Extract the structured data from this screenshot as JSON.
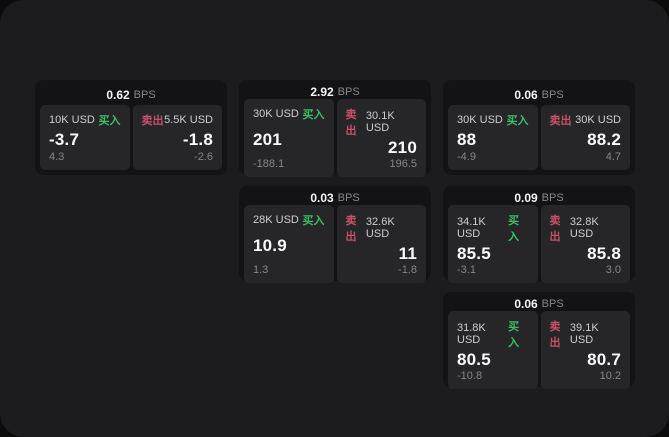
{
  "window": {
    "background": "#1c1c1e",
    "backdrop": "#0c0c0c"
  },
  "colors": {
    "buy": "#3bbf63",
    "sell": "#c85068",
    "card_bg": "#131315",
    "panel_bg": "#262629",
    "price_text": "#fafafa",
    "muted_text": "#86868b"
  },
  "labels": {
    "bps_unit": "BPS",
    "buy": "买入",
    "sell": "卖出"
  },
  "cards": [
    {
      "row": 1,
      "col": 1,
      "bps": "0.62",
      "buy": {
        "amount": "10K USD",
        "price": "-3.7",
        "delta": "4.3"
      },
      "sell": {
        "amount": "5.5K USD",
        "price": "-1.8",
        "delta": "-2.6"
      }
    },
    {
      "row": 1,
      "col": 2,
      "bps": "2.92",
      "buy": {
        "amount": "30K USD",
        "price": "201",
        "delta": "-188.1"
      },
      "sell": {
        "amount": "30.1K USD",
        "price": "210",
        "delta": "196.5"
      }
    },
    {
      "row": 1,
      "col": 3,
      "bps": "0.06",
      "buy": {
        "amount": "30K USD",
        "price": "88",
        "delta": "-4.9"
      },
      "sell": {
        "amount": "30K USD",
        "price": "88.2",
        "delta": "4.7"
      }
    },
    {
      "row": 2,
      "col": 2,
      "bps": "0.03",
      "buy": {
        "amount": "28K USD",
        "price": "10.9",
        "delta": "1.3"
      },
      "sell": {
        "amount": "32.6K USD",
        "price": "11",
        "delta": "-1.8"
      }
    },
    {
      "row": 2,
      "col": 3,
      "bps": "0.09",
      "buy": {
        "amount": "34.1K USD",
        "price": "85.5",
        "delta": "-3.1"
      },
      "sell": {
        "amount": "32.8K USD",
        "price": "85.8",
        "delta": "3.0"
      }
    },
    {
      "row": 3,
      "col": 3,
      "bps": "0.06",
      "buy": {
        "amount": "31.8K USD",
        "price": "80.5",
        "delta": "-10.8"
      },
      "sell": {
        "amount": "39.1K USD",
        "price": "80.7",
        "delta": "10.2"
      }
    }
  ]
}
